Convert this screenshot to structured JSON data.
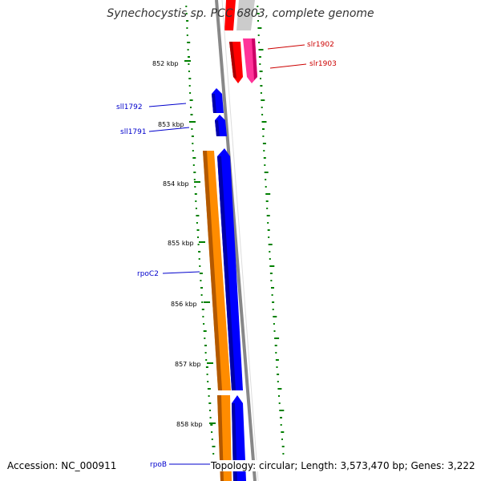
{
  "title": "Synechocystis sp. PCC 6803, complete genome",
  "footer": {
    "accession": "Accession: NC_000911",
    "topology": "Topology: circular; Length: 3,573,470 bp; Genes: 3,222"
  },
  "ruler": {
    "labels": [
      "852 kbp",
      "853 kbp",
      "854 kbp",
      "855 kbp",
      "856 kbp",
      "857 kbp",
      "858 kbp"
    ]
  },
  "genes": {
    "reverse": [
      {
        "name": "sll1792",
        "color": "#0000ff"
      },
      {
        "name": "sll1791",
        "color": "#0000ff"
      },
      {
        "name": "rpoC2",
        "color": "#ff8c00"
      },
      {
        "name": "rpoB",
        "color": "#0000ff"
      }
    ],
    "forward": [
      {
        "name": "slr1902",
        "color": "#ff0000"
      },
      {
        "name": "slr1903",
        "color": "#ff3399"
      }
    ]
  },
  "colors": {
    "backbone": "#888888",
    "gc_skew": "#008000",
    "reverse_label": "#0000cc",
    "forward_label": "#cc0000"
  }
}
